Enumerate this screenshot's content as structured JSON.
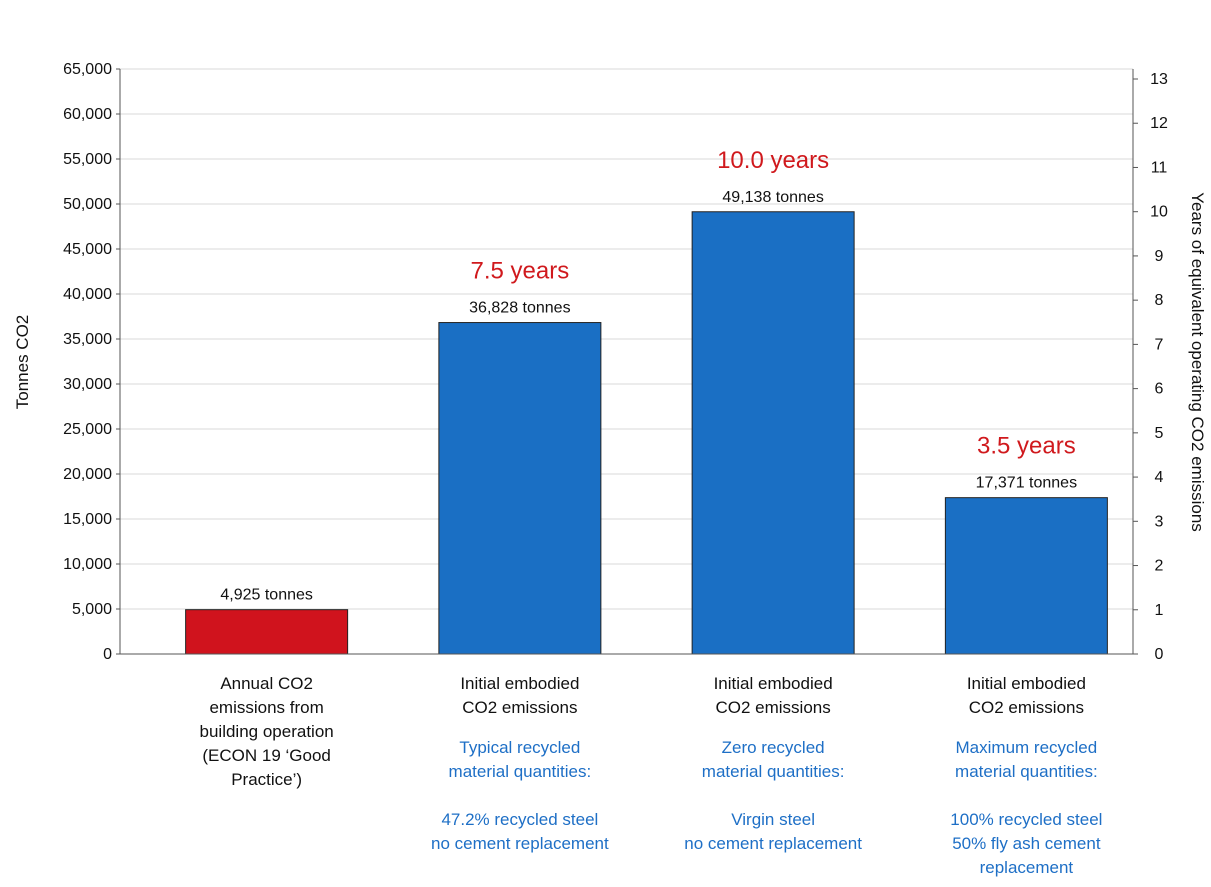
{
  "chart_data": {
    "type": "bar",
    "ylabel": "Tonnes CO2",
    "y2label": "Years of equivalent operating CO2 emissions",
    "ylim": [
      0,
      65000
    ],
    "y_ticks": [
      "65,000",
      "60,000",
      "55,000",
      "50,000",
      "45,000",
      "40,000",
      "35,000",
      "30,000",
      "25,000",
      "20,000",
      "15,000",
      "10,000",
      "5,000",
      "0"
    ],
    "y2lim": [
      0,
      13
    ],
    "y2_ticks": [
      "13",
      "12",
      "11",
      "10",
      "9",
      "8",
      "7",
      "6",
      "5",
      "4",
      "3",
      "2",
      "1",
      "0"
    ],
    "grid": true,
    "bars": [
      {
        "value": 4925,
        "color": "#d0131d",
        "value_label": "4,925 tonnes",
        "years_label": "",
        "category_lines": [
          "Annual CO2",
          "emissions from",
          "building operation",
          "(ECON 19 ‘Good",
          "Practice’)"
        ],
        "note_lines": []
      },
      {
        "value": 36828,
        "color": "#1a6fc4",
        "value_label": "36,828 tonnes",
        "years_label": "7.5 years",
        "category_lines": [
          "Initial embodied",
          "CO2  emissions"
        ],
        "note_lines": [
          "Typical recycled",
          "material quantities:",
          "",
          "47.2% recycled steel",
          "no cement replacement"
        ]
      },
      {
        "value": 49138,
        "color": "#1a6fc4",
        "value_label": "49,138 tonnes",
        "years_label": "10.0 years",
        "category_lines": [
          "Initial embodied",
          "CO2  emissions"
        ],
        "note_lines": [
          "Zero recycled",
          "material quantities:",
          "",
          "Virgin steel",
          "no cement replacement"
        ]
      },
      {
        "value": 17371,
        "color": "#1a6fc4",
        "value_label": "17,371 tonnes",
        "years_label": "3.5 years",
        "category_lines": [
          "Initial embodied",
          "CO2  emissions"
        ],
        "note_lines": [
          "Maximum recycled",
          "material quantities:",
          "",
          "100% recycled steel",
          "50% fly ash cement",
          "replacement"
        ]
      }
    ]
  }
}
